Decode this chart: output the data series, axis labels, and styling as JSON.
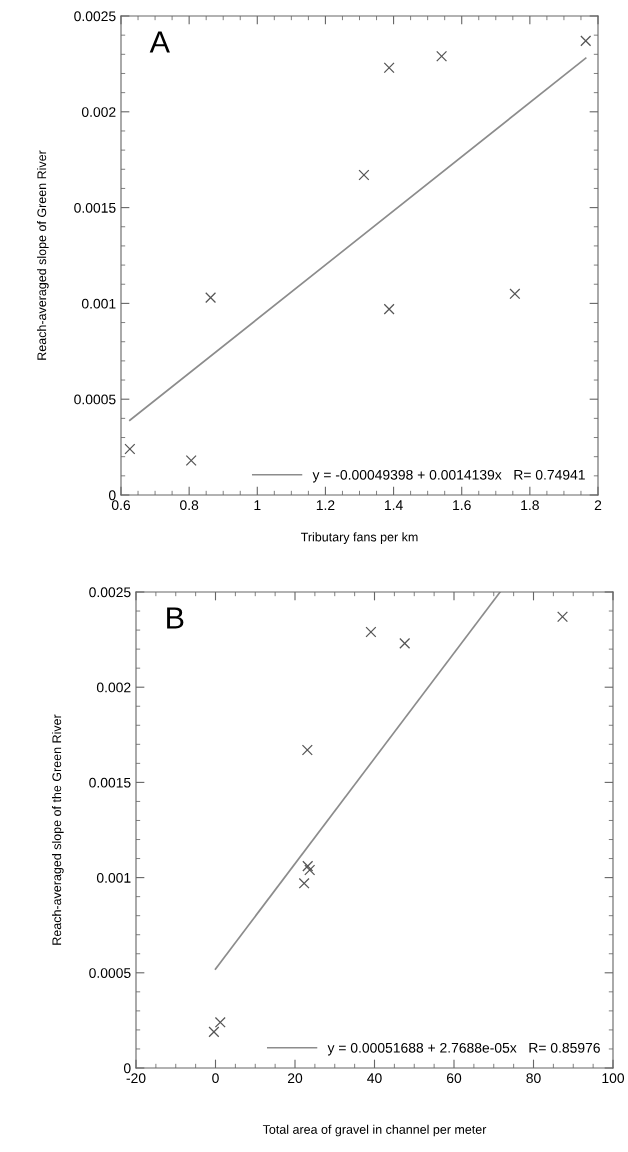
{
  "chart_data": [
    {
      "type": "scatter",
      "xlabel": "Tributary fans per km",
      "ylabel": "Reach-averaged slope of Green River",
      "annotations": [
        "A"
      ],
      "legend": "bottom right",
      "grid": false,
      "xlim": [
        0.6,
        2
      ],
      "xticks": [
        0.6,
        0.8,
        1,
        1.2,
        1.4,
        1.6,
        1.8,
        2
      ],
      "ylim": [
        0,
        0.0025
      ],
      "yticks": [
        0,
        0.0005,
        0.001,
        0.0015,
        0.002,
        0.0025
      ],
      "series": [
        {
          "marker": "cross",
          "color": "#555555",
          "x": [
            0.626,
            0.806,
            0.863,
            1.313,
            1.387,
            1.387,
            1.541,
            1.756,
            1.964
          ],
          "values": [
            0.00024,
            0.00018,
            0.00103,
            0.00167,
            0.00223,
            0.00097,
            0.00229,
            0.00105,
            0.00237
          ]
        },
        {
          "type": "line",
          "marker": "none",
          "name": "y = -0.00049398 + 0.0014139x   R= 0.74941",
          "color": "#8c8c8c",
          "x": [
            0.626,
            1.964
          ],
          "values": [
            0.00039,
            0.00228
          ]
        }
      ]
    },
    {
      "type": "scatter",
      "xlabel": "Total area of gravel in channel per meter",
      "ylabel": "Reach-averaged slope of the Green River",
      "annotations": [
        "B"
      ],
      "legend": "bottom right",
      "grid": false,
      "xlim": [
        -20,
        100
      ],
      "xticks": [
        -20,
        0,
        20,
        40,
        60,
        80,
        100
      ],
      "ylim": [
        0,
        0.0025
      ],
      "yticks": [
        0,
        0.0005,
        0.001,
        0.0015,
        0.002,
        0.0025
      ],
      "series": [
        {
          "marker": "cross",
          "color": "#555555",
          "x": [
            -0.4,
            1.2,
            22.3,
            23.2,
            23.7,
            23.1,
            39.1,
            47.6,
            87.3
          ],
          "values": [
            0.00019,
            0.00024,
            0.00097,
            0.00106,
            0.00104,
            0.00167,
            0.00229,
            0.00223,
            0.00237
          ]
        },
        {
          "type": "line",
          "marker": "none",
          "name": "y = 0.00051688 + 2.7688e-05x   R= 0.85976",
          "color": "#8c8c8c",
          "x": [
            0,
            71.6
          ],
          "values": [
            0.00052,
            0.0025
          ]
        }
      ]
    }
  ]
}
